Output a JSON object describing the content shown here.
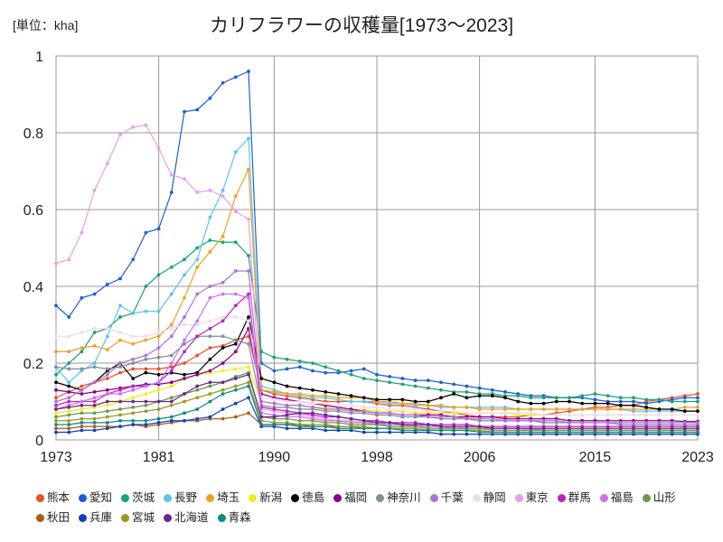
{
  "chart_data": {
    "type": "line",
    "title": "カリフラワーの収穫量[1973～2023]",
    "unit_label": "[単位：kha]",
    "xlabel": "",
    "ylabel": "",
    "ylim": [
      0,
      1
    ],
    "xlim": [
      1973,
      2023
    ],
    "x_ticks": [
      1973,
      1981,
      1990,
      1998,
      2006,
      2015,
      2023
    ],
    "y_ticks": [
      0,
      0.2,
      0.4,
      0.6,
      0.8,
      1
    ],
    "y_tick_labels": [
      "0",
      "0.2",
      "0.4",
      "0.6",
      "0.8",
      "1"
    ],
    "grid": true,
    "x": [
      1973,
      1974,
      1975,
      1976,
      1977,
      1978,
      1979,
      1980,
      1981,
      1982,
      1983,
      1984,
      1985,
      1986,
      1987,
      1988,
      1989,
      1990,
      1991,
      1992,
      1993,
      1994,
      1995,
      1996,
      1997,
      1998,
      1999,
      2000,
      2001,
      2002,
      2003,
      2004,
      2005,
      2006,
      2007,
      2008,
      2009,
      2010,
      2011,
      2012,
      2013,
      2014,
      2015,
      2016,
      2017,
      2018,
      2019,
      2020,
      2021,
      2022,
      2023
    ],
    "series": [
      {
        "name": "熊本",
        "color": "#e8512a",
        "values": [
          0.11,
          0.125,
          0.14,
          0.15,
          0.16,
          0.175,
          0.185,
          0.185,
          0.185,
          0.19,
          0.2,
          0.22,
          0.24,
          0.245,
          0.26,
          0.27,
          0.13,
          0.12,
          0.115,
          0.11,
          0.105,
          0.1,
          0.1,
          0.1,
          0.1,
          0.095,
          0.09,
          0.09,
          0.085,
          0.08,
          0.075,
          0.07,
          0.065,
          0.06,
          0.06,
          0.06,
          0.06,
          0.065,
          0.065,
          0.07,
          0.075,
          0.08,
          0.085,
          0.085,
          0.09,
          0.09,
          0.1,
          0.105,
          0.11,
          0.115,
          0.12
        ]
      },
      {
        "name": "愛知",
        "color": "#1a5fd6",
        "values": [
          0.35,
          0.32,
          0.37,
          0.38,
          0.405,
          0.42,
          0.47,
          0.54,
          0.55,
          0.645,
          0.855,
          0.86,
          0.89,
          0.93,
          0.945,
          0.96,
          0.2,
          0.18,
          0.185,
          0.19,
          0.18,
          0.175,
          0.175,
          0.18,
          0.185,
          0.17,
          0.165,
          0.16,
          0.155,
          0.155,
          0.15,
          0.145,
          0.14,
          0.135,
          0.13,
          0.125,
          0.12,
          0.115,
          0.115,
          0.11,
          0.11,
          0.11,
          0.105,
          0.1,
          0.1,
          0.1,
          0.095,
          0.1,
          0.105,
          0.11,
          0.11
        ]
      },
      {
        "name": "茨城",
        "color": "#1aa27a",
        "values": [
          0.17,
          0.2,
          0.23,
          0.28,
          0.29,
          0.32,
          0.33,
          0.4,
          0.43,
          0.45,
          0.47,
          0.5,
          0.52,
          0.515,
          0.515,
          0.48,
          0.23,
          0.215,
          0.21,
          0.205,
          0.2,
          0.19,
          0.18,
          0.17,
          0.16,
          0.155,
          0.15,
          0.145,
          0.14,
          0.135,
          0.13,
          0.125,
          0.125,
          0.12,
          0.12,
          0.115,
          0.115,
          0.11,
          0.11,
          0.11,
          0.11,
          0.115,
          0.12,
          0.115,
          0.11,
          0.11,
          0.105,
          0.105,
          0.1,
          0.1,
          0.1
        ]
      },
      {
        "name": "長野",
        "color": "#5cc3ee",
        "values": [
          0.19,
          0.15,
          0.18,
          0.2,
          0.27,
          0.35,
          0.33,
          0.335,
          0.335,
          0.38,
          0.43,
          0.47,
          0.58,
          0.65,
          0.75,
          0.785,
          0.14,
          0.13,
          0.12,
          0.115,
          0.11,
          0.11,
          0.105,
          0.1,
          0.1,
          0.1,
          0.095,
          0.095,
          0.09,
          0.09,
          0.085,
          0.085,
          0.085,
          0.085,
          0.085,
          0.085,
          0.08,
          0.08,
          0.08,
          0.08,
          0.08,
          0.08,
          0.08,
          0.08,
          0.08,
          0.075,
          0.075,
          0.075,
          0.075,
          0.075,
          0.075
        ]
      },
      {
        "name": "埼玉",
        "color": "#f0a020",
        "values": [
          0.23,
          0.23,
          0.24,
          0.245,
          0.235,
          0.26,
          0.25,
          0.26,
          0.27,
          0.3,
          0.37,
          0.45,
          0.49,
          0.53,
          0.635,
          0.705,
          0.13,
          0.125,
          0.12,
          0.12,
          0.115,
          0.115,
          0.11,
          0.11,
          0.11,
          0.1,
          0.1,
          0.095,
          0.095,
          0.09,
          0.09,
          0.085,
          0.085,
          0.08,
          0.08,
          0.08,
          0.08,
          0.08,
          0.08,
          0.08,
          0.08,
          0.08,
          0.08,
          0.08,
          0.08,
          0.08,
          0.08,
          0.08,
          0.08,
          0.085,
          0.085
        ]
      },
      {
        "name": "新潟",
        "color": "#f4ec1a",
        "values": [
          0.07,
          0.075,
          0.08,
          0.085,
          0.09,
          0.1,
          0.11,
          0.12,
          0.13,
          0.14,
          0.16,
          0.17,
          0.175,
          0.18,
          0.185,
          0.19,
          0.1,
          0.095,
          0.09,
          0.09,
          0.085,
          0.085,
          0.08,
          0.08,
          0.08,
          0.075,
          0.075,
          0.075,
          0.07,
          0.07,
          0.07,
          0.07,
          0.07,
          0.07,
          0.07,
          0.07,
          0.065,
          0.065,
          0.065,
          0.065,
          0.065,
          0.065,
          0.065,
          0.065,
          0.065,
          0.065,
          0.065,
          0.065,
          0.065,
          0.065,
          0.065
        ]
      },
      {
        "name": "徳島",
        "color": "#000000",
        "values": [
          0.15,
          0.14,
          0.13,
          0.15,
          0.18,
          0.2,
          0.16,
          0.175,
          0.17,
          0.175,
          0.17,
          0.175,
          0.21,
          0.24,
          0.25,
          0.32,
          0.16,
          0.15,
          0.14,
          0.135,
          0.13,
          0.125,
          0.12,
          0.115,
          0.11,
          0.105,
          0.105,
          0.105,
          0.1,
          0.1,
          0.11,
          0.12,
          0.11,
          0.115,
          0.115,
          0.11,
          0.1,
          0.095,
          0.095,
          0.1,
          0.1,
          0.095,
          0.095,
          0.095,
          0.09,
          0.09,
          0.085,
          0.08,
          0.08,
          0.075,
          0.075
        ]
      },
      {
        "name": "福岡",
        "color": "#8b008b",
        "values": [
          0.13,
          0.125,
          0.12,
          0.125,
          0.13,
          0.135,
          0.14,
          0.145,
          0.145,
          0.15,
          0.16,
          0.17,
          0.18,
          0.2,
          0.23,
          0.29,
          0.12,
          0.11,
          0.105,
          0.1,
          0.095,
          0.09,
          0.085,
          0.08,
          0.075,
          0.07,
          0.07,
          0.065,
          0.065,
          0.065,
          0.065,
          0.06,
          0.06,
          0.06,
          0.06,
          0.055,
          0.055,
          0.055,
          0.055,
          0.055,
          0.05,
          0.05,
          0.05,
          0.05,
          0.05,
          0.05,
          0.05,
          0.05,
          0.05,
          0.048,
          0.048
        ]
      },
      {
        "name": "神奈川",
        "color": "#7f8fa0",
        "values": [
          0.19,
          0.185,
          0.185,
          0.19,
          0.185,
          0.19,
          0.2,
          0.21,
          0.215,
          0.22,
          0.25,
          0.27,
          0.27,
          0.27,
          0.26,
          0.25,
          0.09,
          0.085,
          0.085,
          0.08,
          0.08,
          0.075,
          0.075,
          0.07,
          0.07,
          0.065,
          0.065,
          0.06,
          0.06,
          0.06,
          0.055,
          0.055,
          0.055,
          0.05,
          0.05,
          0.05,
          0.05,
          0.05,
          0.045,
          0.045,
          0.045,
          0.045,
          0.045,
          0.045,
          0.04,
          0.04,
          0.04,
          0.04,
          0.04,
          0.04,
          0.04
        ]
      },
      {
        "name": "千葉",
        "color": "#b46fd6",
        "values": [
          0.1,
          0.11,
          0.13,
          0.15,
          0.17,
          0.2,
          0.21,
          0.22,
          0.24,
          0.27,
          0.32,
          0.38,
          0.4,
          0.41,
          0.44,
          0.44,
          0.1,
          0.095,
          0.09,
          0.09,
          0.085,
          0.08,
          0.08,
          0.075,
          0.075,
          0.07,
          0.07,
          0.065,
          0.065,
          0.06,
          0.06,
          0.06,
          0.055,
          0.055,
          0.055,
          0.05,
          0.05,
          0.05,
          0.05,
          0.05,
          0.045,
          0.045,
          0.045,
          0.045,
          0.045,
          0.045,
          0.045,
          0.045,
          0.045,
          0.045,
          0.045
        ]
      },
      {
        "name": "静岡",
        "color": "#ecdcec",
        "values": [
          0.27,
          0.27,
          0.28,
          0.29,
          0.29,
          0.28,
          0.27,
          0.27,
          0.28,
          0.29,
          0.3,
          0.3,
          0.31,
          0.32,
          0.32,
          0.31,
          0.11,
          0.105,
          0.1,
          0.1,
          0.095,
          0.095,
          0.09,
          0.09,
          0.085,
          0.085,
          0.08,
          0.08,
          0.08,
          0.075,
          0.075,
          0.075,
          0.07,
          0.07,
          0.07,
          0.07,
          0.07,
          0.07,
          0.065,
          0.065,
          0.065,
          0.065,
          0.065,
          0.065,
          0.065,
          0.065,
          0.065,
          0.065,
          0.065,
          0.065,
          0.065
        ]
      },
      {
        "name": "東京",
        "color": "#e89ee8",
        "values": [
          0.46,
          0.47,
          0.54,
          0.65,
          0.72,
          0.795,
          0.815,
          0.82,
          0.76,
          0.69,
          0.68,
          0.645,
          0.65,
          0.635,
          0.595,
          0.575,
          0.08,
          0.075,
          0.07,
          0.065,
          0.06,
          0.055,
          0.05,
          0.05,
          0.045,
          0.045,
          0.04,
          0.04,
          0.04,
          0.035,
          0.035,
          0.035,
          0.03,
          0.03,
          0.03,
          0.03,
          0.03,
          0.025,
          0.025,
          0.025,
          0.025,
          0.025,
          0.025,
          0.025,
          0.025,
          0.025,
          0.025,
          0.025,
          0.025,
          0.025,
          0.025
        ]
      },
      {
        "name": "群馬",
        "color": "#c020c0",
        "values": [
          0.09,
          0.1,
          0.1,
          0.1,
          0.12,
          0.13,
          0.14,
          0.14,
          0.15,
          0.18,
          0.23,
          0.27,
          0.29,
          0.31,
          0.35,
          0.38,
          0.085,
          0.08,
          0.075,
          0.07,
          0.065,
          0.06,
          0.06,
          0.055,
          0.05,
          0.05,
          0.045,
          0.045,
          0.045,
          0.04,
          0.04,
          0.04,
          0.04,
          0.035,
          0.035,
          0.035,
          0.035,
          0.035,
          0.035,
          0.035,
          0.035,
          0.035,
          0.035,
          0.035,
          0.035,
          0.035,
          0.035,
          0.035,
          0.035,
          0.035,
          0.035
        ]
      },
      {
        "name": "福島",
        "color": "#d070f0",
        "values": [
          0.08,
          0.09,
          0.1,
          0.11,
          0.12,
          0.12,
          0.13,
          0.14,
          0.15,
          0.2,
          0.26,
          0.31,
          0.37,
          0.38,
          0.38,
          0.37,
          0.07,
          0.065,
          0.06,
          0.06,
          0.055,
          0.05,
          0.05,
          0.045,
          0.045,
          0.04,
          0.04,
          0.04,
          0.035,
          0.035,
          0.035,
          0.03,
          0.03,
          0.03,
          0.03,
          0.03,
          0.03,
          0.03,
          0.025,
          0.025,
          0.025,
          0.025,
          0.025,
          0.025,
          0.025,
          0.025,
          0.025,
          0.025,
          0.025,
          0.025,
          0.025
        ]
      },
      {
        "name": "山形",
        "color": "#6a9a4a",
        "values": [
          0.06,
          0.065,
          0.07,
          0.07,
          0.075,
          0.08,
          0.085,
          0.09,
          0.1,
          0.11,
          0.12,
          0.13,
          0.14,
          0.15,
          0.165,
          0.175,
          0.06,
          0.055,
          0.055,
          0.05,
          0.05,
          0.045,
          0.045,
          0.04,
          0.04,
          0.04,
          0.035,
          0.035,
          0.035,
          0.03,
          0.03,
          0.03,
          0.03,
          0.03,
          0.025,
          0.025,
          0.025,
          0.025,
          0.025,
          0.025,
          0.025,
          0.025,
          0.025,
          0.025,
          0.025,
          0.025,
          0.025,
          0.025,
          0.025,
          0.025,
          0.025
        ]
      },
      {
        "name": "秋田",
        "color": "#b05a1a",
        "values": [
          0.03,
          0.03,
          0.035,
          0.035,
          0.035,
          0.035,
          0.04,
          0.035,
          0.04,
          0.045,
          0.05,
          0.05,
          0.055,
          0.055,
          0.06,
          0.07,
          0.04,
          0.04,
          0.04,
          0.04,
          0.035,
          0.035,
          0.035,
          0.035,
          0.03,
          0.03,
          0.03,
          0.03,
          0.03,
          0.025,
          0.025,
          0.025,
          0.025,
          0.025,
          0.02,
          0.02,
          0.02,
          0.02,
          0.02,
          0.02,
          0.02,
          0.02,
          0.02,
          0.02,
          0.02,
          0.02,
          0.02,
          0.02,
          0.02,
          0.02,
          0.02
        ]
      },
      {
        "name": "兵庫",
        "color": "#1040c0",
        "values": [
          0.02,
          0.02,
          0.025,
          0.025,
          0.03,
          0.035,
          0.04,
          0.04,
          0.045,
          0.05,
          0.05,
          0.055,
          0.06,
          0.08,
          0.095,
          0.11,
          0.035,
          0.035,
          0.03,
          0.03,
          0.03,
          0.025,
          0.025,
          0.025,
          0.02,
          0.02,
          0.02,
          0.02,
          0.02,
          0.02,
          0.015,
          0.015,
          0.015,
          0.015,
          0.015,
          0.015,
          0.015,
          0.015,
          0.015,
          0.015,
          0.015,
          0.015,
          0.015,
          0.015,
          0.015,
          0.015,
          0.015,
          0.015,
          0.015,
          0.015,
          0.015
        ]
      },
      {
        "name": "宮城",
        "color": "#9a9a20",
        "values": [
          0.05,
          0.05,
          0.055,
          0.055,
          0.06,
          0.065,
          0.07,
          0.075,
          0.08,
          0.09,
          0.1,
          0.11,
          0.12,
          0.13,
          0.14,
          0.15,
          0.05,
          0.045,
          0.045,
          0.04,
          0.04,
          0.04,
          0.035,
          0.035,
          0.035,
          0.03,
          0.03,
          0.03,
          0.03,
          0.025,
          0.025,
          0.025,
          0.025,
          0.025,
          0.02,
          0.02,
          0.02,
          0.02,
          0.02,
          0.02,
          0.02,
          0.02,
          0.02,
          0.02,
          0.02,
          0.02,
          0.02,
          0.02,
          0.02,
          0.02,
          0.02
        ]
      },
      {
        "name": "北海道",
        "color": "#6a2a8a",
        "values": [
          0.08,
          0.085,
          0.09,
          0.09,
          0.1,
          0.1,
          0.1,
          0.1,
          0.1,
          0.1,
          0.12,
          0.14,
          0.15,
          0.15,
          0.16,
          0.17,
          0.06,
          0.06,
          0.065,
          0.07,
          0.07,
          0.065,
          0.06,
          0.055,
          0.05,
          0.045,
          0.045,
          0.04,
          0.04,
          0.04,
          0.035,
          0.035,
          0.035,
          0.035,
          0.03,
          0.03,
          0.03,
          0.03,
          0.03,
          0.03,
          0.03,
          0.03,
          0.03,
          0.03,
          0.03,
          0.03,
          0.03,
          0.03,
          0.03,
          0.03,
          0.03
        ]
      },
      {
        "name": "青森",
        "color": "#108a80",
        "values": [
          0.04,
          0.04,
          0.045,
          0.045,
          0.045,
          0.05,
          0.05,
          0.05,
          0.055,
          0.06,
          0.07,
          0.08,
          0.1,
          0.12,
          0.13,
          0.14,
          0.04,
          0.04,
          0.04,
          0.035,
          0.035,
          0.035,
          0.03,
          0.03,
          0.03,
          0.03,
          0.03,
          0.025,
          0.025,
          0.025,
          0.025,
          0.025,
          0.025,
          0.02,
          0.02,
          0.02,
          0.02,
          0.02,
          0.02,
          0.02,
          0.02,
          0.02,
          0.02,
          0.02,
          0.02,
          0.02,
          0.02,
          0.02,
          0.02,
          0.02,
          0.02
        ]
      }
    ]
  }
}
